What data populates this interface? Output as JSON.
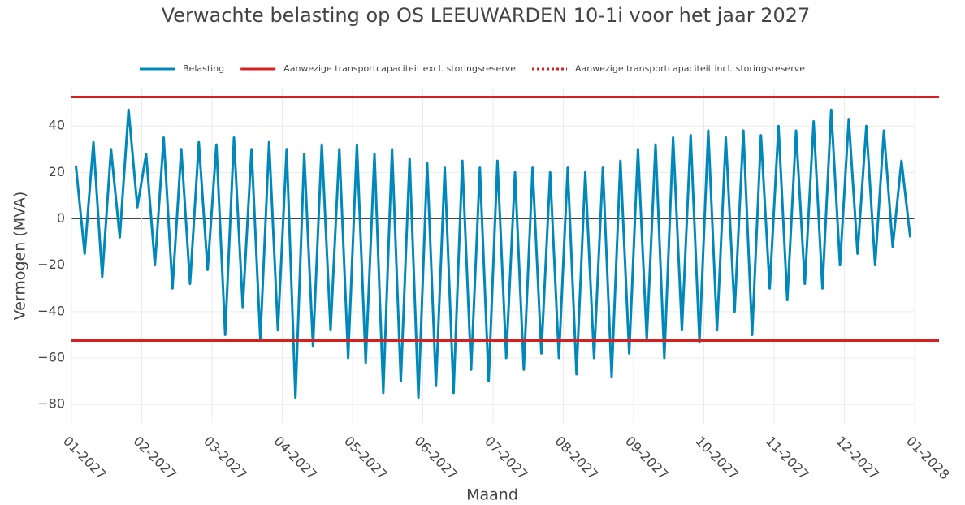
{
  "chart_data": {
    "type": "line",
    "title": "Verwachte belasting op OS LEEUWARDEN 10-1i voor het jaar 2027",
    "x_label": "Maand",
    "y_label": "Vermogen (MVA)",
    "x": [
      0.0625,
      0.1875,
      0.3125,
      0.4375,
      0.5625,
      0.6875,
      0.8125,
      0.9375,
      1.0625,
      1.1875,
      1.3125,
      1.4375,
      1.5625,
      1.6875,
      1.8125,
      1.9375,
      2.0625,
      2.1875,
      2.3125,
      2.4375,
      2.5625,
      2.6875,
      2.8125,
      2.9375,
      3.0625,
      3.1875,
      3.3125,
      3.4375,
      3.5625,
      3.6875,
      3.8125,
      3.9375,
      4.0625,
      4.1875,
      4.3125,
      4.4375,
      4.5625,
      4.6875,
      4.8125,
      4.9375,
      5.0625,
      5.1875,
      5.3125,
      5.4375,
      5.5625,
      5.6875,
      5.8125,
      5.9375,
      6.0625,
      6.1875,
      6.3125,
      6.4375,
      6.5625,
      6.6875,
      6.8125,
      6.9375,
      7.0625,
      7.1875,
      7.3125,
      7.4375,
      7.5625,
      7.6875,
      7.8125,
      7.9375,
      8.0625,
      8.1875,
      8.3125,
      8.4375,
      8.5625,
      8.6875,
      8.8125,
      8.9375,
      9.0625,
      9.1875,
      9.3125,
      9.4375,
      9.5625,
      9.6875,
      9.8125,
      9.9375,
      10.0625,
      10.1875,
      10.3125,
      10.4375,
      10.5625,
      10.6875,
      10.8125,
      10.9375,
      11.0625,
      11.1875,
      11.3125,
      11.4375,
      11.5625,
      11.6875,
      11.8125,
      11.9375
    ],
    "series": [
      {
        "name": "Belasting",
        "color": "#0088bb",
        "values": [
          23,
          -15,
          33,
          -25,
          30,
          -8,
          47,
          5,
          28,
          -20,
          35,
          -30,
          30,
          -28,
          33,
          -22,
          32,
          -50,
          35,
          -38,
          30,
          -52,
          33,
          -48,
          30,
          -77,
          28,
          -55,
          32,
          -48,
          30,
          -60,
          32,
          -62,
          28,
          -75,
          30,
          -70,
          26,
          -77,
          24,
          -72,
          22,
          -75,
          25,
          -65,
          22,
          -70,
          25,
          -60,
          20,
          -65,
          22,
          -58,
          20,
          -60,
          22,
          -67,
          20,
          -60,
          22,
          -68,
          25,
          -58,
          30,
          -52,
          32,
          -60,
          35,
          -48,
          36,
          -53,
          38,
          -48,
          35,
          -40,
          38,
          -50,
          36,
          -30,
          40,
          -35,
          38,
          -28,
          42,
          -30,
          47,
          -20,
          43,
          -15,
          40,
          -20,
          38,
          -12,
          25,
          -8
        ]
      }
    ],
    "reference_lines": [
      {
        "name": "Aanwezige transportcapaciteit excl. storingsreserve",
        "color": "#d62020",
        "dash": "solid",
        "levels": [
          52.5,
          -52.5
        ]
      },
      {
        "name": "Aanwezige transportcapaciteit incl. storingsreserve",
        "color": "#d62020",
        "dash": "dot",
        "levels": [
          52.5,
          -52.5
        ]
      }
    ],
    "xlim": [
      0,
      12
    ],
    "xticks": [
      {
        "value": 0,
        "label": "01-2027"
      },
      {
        "value": 1,
        "label": "02-2027"
      },
      {
        "value": 2,
        "label": "03-2027"
      },
      {
        "value": 3,
        "label": "04-2027"
      },
      {
        "value": 4,
        "label": "05-2027"
      },
      {
        "value": 5,
        "label": "06-2027"
      },
      {
        "value": 6,
        "label": "07-2027"
      },
      {
        "value": 7,
        "label": "08-2027"
      },
      {
        "value": 8,
        "label": "09-2027"
      },
      {
        "value": 9,
        "label": "10-2027"
      },
      {
        "value": 10,
        "label": "11-2027"
      },
      {
        "value": 11,
        "label": "12-2027"
      },
      {
        "value": 12,
        "label": "01-2028"
      }
    ],
    "ylim": [
      -88,
      56
    ],
    "yticks": [
      {
        "value": -80,
        "label": "−80"
      },
      {
        "value": -60,
        "label": "−60"
      },
      {
        "value": -40,
        "label": "−40"
      },
      {
        "value": -20,
        "label": "−20"
      },
      0,
      20,
      40
    ],
    "grid": true,
    "legend": "top"
  }
}
